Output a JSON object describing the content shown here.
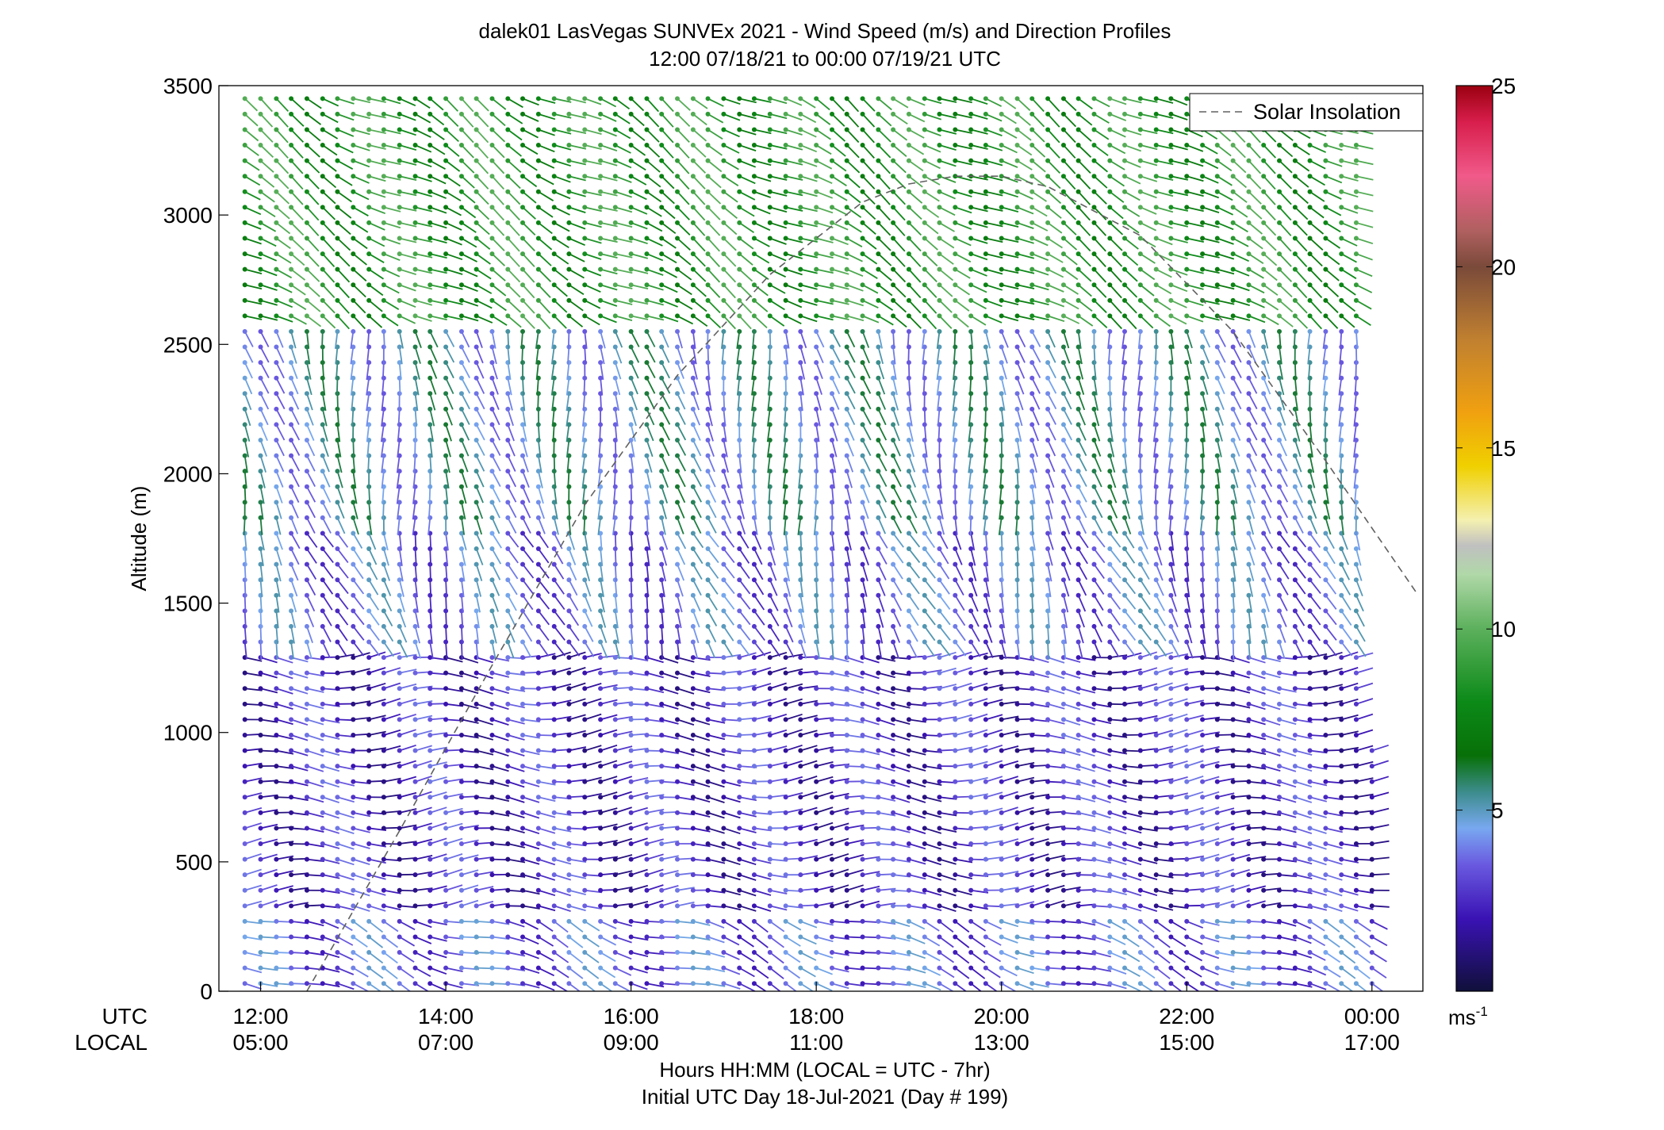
{
  "title_line1": "dalek01 LasVegas SUNVEx 2021 - Wind Speed (m/s) and Direction Profiles",
  "title_line2": "12:00 07/18/21 to 00:00 07/19/21  UTC",
  "row_label_utc": "UTC",
  "row_label_local": "LOCAL",
  "xlabel_line1": "Hours HH:MM  (LOCAL = UTC - 7hr)",
  "xlabel_line2": "Initial UTC Day 18-Jul-2021 (Day # 199)",
  "colorbar_unit_base": "ms",
  "colorbar_unit_exp": "-1",
  "chart_data": {
    "type": "wind-barb-profile",
    "ylabel": "Altitude (m)",
    "ylim": [
      0,
      3500
    ],
    "yticks": [
      "0",
      "500",
      "1000",
      "1500",
      "2000",
      "2500",
      "3000",
      "3500"
    ],
    "xlim_hours": [
      11.55,
      24.55
    ],
    "xticks": [
      {
        "h": 12,
        "utc": "12:00",
        "local": "05:00"
      },
      {
        "h": 14,
        "utc": "14:00",
        "local": "07:00"
      },
      {
        "h": 16,
        "utc": "16:00",
        "local": "09:00"
      },
      {
        "h": 18,
        "utc": "18:00",
        "local": "11:00"
      },
      {
        "h": 20,
        "utc": "20:00",
        "local": "13:00"
      },
      {
        "h": 22,
        "utc": "22:00",
        "local": "15:00"
      },
      {
        "h": 24,
        "utc": "00:00",
        "local": "17:00"
      }
    ],
    "legend": {
      "label": "Solar Insolation",
      "position": "top-right",
      "line_color": "#606060"
    },
    "solar_insolation": {
      "hours": [
        12.5,
        13.5,
        14.5,
        15.5,
        16.5,
        17.5,
        18.5,
        19.0,
        19.5,
        20.0,
        20.5,
        21.5,
        22.5,
        23.5,
        24.5
      ],
      "altitude": [
        0,
        620,
        1260,
        1880,
        2380,
        2770,
        3050,
        3120,
        3150,
        3150,
        3110,
        2920,
        2550,
        2050,
        1530
      ]
    },
    "colorbar": {
      "range": [
        0,
        25
      ],
      "ticks": [
        "5",
        "10",
        "15",
        "20",
        "25"
      ],
      "stops": [
        {
          "v": 0,
          "c": "#10103a"
        },
        {
          "v": 2,
          "c": "#3a12b4"
        },
        {
          "v": 3.5,
          "c": "#6a5ae0"
        },
        {
          "v": 4.5,
          "c": "#78a8f0"
        },
        {
          "v": 5.5,
          "c": "#3c8c8c"
        },
        {
          "v": 6.5,
          "c": "#087008"
        },
        {
          "v": 8,
          "c": "#0c8a18"
        },
        {
          "v": 10,
          "c": "#5cb05c"
        },
        {
          "v": 11.5,
          "c": "#b0d8a8"
        },
        {
          "v": 12.3,
          "c": "#c0c0c0"
        },
        {
          "v": 13,
          "c": "#f4f0b0"
        },
        {
          "v": 14.5,
          "c": "#f0d000"
        },
        {
          "v": 16,
          "c": "#f0a010"
        },
        {
          "v": 18,
          "c": "#c08030"
        },
        {
          "v": 20,
          "c": "#7a4a3a"
        },
        {
          "v": 21,
          "c": "#b06060"
        },
        {
          "v": 22.5,
          "c": "#f05a8a"
        },
        {
          "v": 24,
          "c": "#d81e4c"
        },
        {
          "v": 25,
          "c": "#9a0010"
        }
      ]
    },
    "profiles_hours": [
      11.83,
      12.0,
      12.17,
      12.33,
      12.5,
      12.67,
      12.83,
      13.0,
      13.17,
      13.33,
      13.5,
      13.67,
      13.83,
      14.0,
      14.17,
      14.33,
      14.5,
      14.67,
      14.83,
      15.0,
      15.17,
      15.33,
      15.5,
      15.67,
      15.83,
      16.0,
      16.17,
      16.33,
      16.5,
      16.67,
      16.83,
      17.0,
      17.17,
      17.33,
      17.5,
      17.67,
      17.83,
      18.0,
      18.17,
      18.33,
      18.5,
      18.67,
      18.83,
      19.0,
      19.17,
      19.33,
      19.5,
      19.67,
      19.83,
      20.0,
      20.17,
      20.33,
      20.5,
      20.67,
      20.83,
      21.0,
      21.17,
      21.33,
      21.5,
      21.67,
      21.83,
      22.0,
      22.17,
      22.33,
      22.5,
      22.67,
      22.83,
      23.0,
      23.17,
      23.33,
      23.5,
      23.67,
      23.83,
      24.0
    ],
    "profile_top_m": [
      3450,
      3450,
      3450,
      3450,
      3450,
      3450,
      3450,
      3450,
      3450,
      3450,
      3450,
      3450,
      3450,
      3450,
      3450,
      3450,
      3450,
      3450,
      3450,
      3450,
      3450,
      3450,
      3450,
      3450,
      3450,
      3450,
      3450,
      3450,
      3450,
      3450,
      3450,
      3450,
      3450,
      3450,
      3450,
      3450,
      3450,
      3450,
      3450,
      3450,
      3450,
      3450,
      3450,
      3450,
      3450,
      3450,
      3450,
      3450,
      3450,
      3450,
      3450,
      3450,
      3450,
      3450,
      3450,
      3450,
      3450,
      3450,
      3450,
      3450,
      3450,
      3450,
      3450,
      3450,
      3450,
      3450,
      3450,
      3450,
      3450,
      3450,
      3450,
      3450,
      3450,
      960
    ],
    "level_step_m": 60,
    "levels_from_m": 30,
    "speed_layers_ms": [
      {
        "below_m": 300,
        "speed": 3.5
      },
      {
        "below_m": 1300,
        "speed": 2.5
      },
      {
        "below_m": 1800,
        "speed": 3.8
      },
      {
        "below_m": 2600,
        "speed": 4.8
      },
      {
        "below_m": 3500,
        "speed": 8.5
      }
    ],
    "wind_dir_deg_by_layer": [
      {
        "below_m": 300,
        "dir": 250
      },
      {
        "below_m": 1300,
        "dir": 270
      },
      {
        "below_m": 1800,
        "dir": 200
      },
      {
        "below_m": 2600,
        "dir": 190
      },
      {
        "below_m": 3500,
        "dir": 240
      }
    ]
  }
}
